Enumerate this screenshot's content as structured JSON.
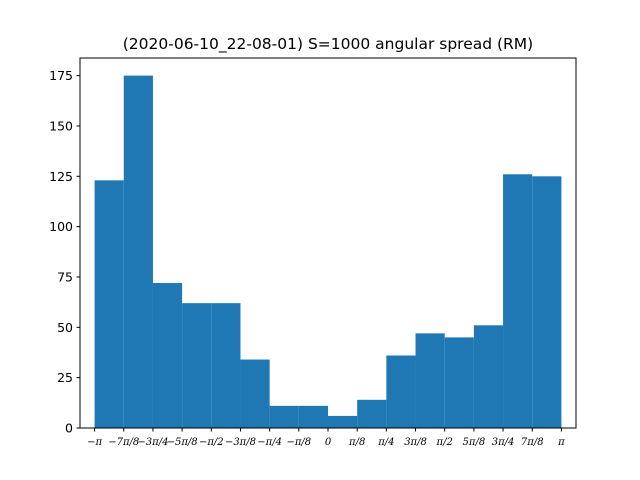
{
  "chart_data": {
    "type": "bar",
    "title": "(2020-06-10_22-08-01) S=1000 angular spread (RM)",
    "xlabel": "",
    "ylabel": "",
    "xlim": [
      -3.3379,
      3.3379
    ],
    "ylim": [
      0,
      183.75
    ],
    "color": "#1f77b4",
    "grid": false,
    "bin_edges": [
      -3.14159,
      -2.74889,
      -2.35619,
      -1.9635,
      -1.5708,
      -1.1781,
      -0.7854,
      -0.3927,
      0.0,
      0.3927,
      0.7854,
      1.1781,
      1.5708,
      1.9635,
      2.35619,
      2.74889,
      3.14159
    ],
    "values": [
      123,
      175,
      72,
      62,
      62,
      34,
      11,
      11,
      6,
      14,
      36,
      47,
      45,
      51,
      126,
      125
    ],
    "yticks": [
      0,
      25,
      50,
      75,
      100,
      125,
      150,
      175
    ],
    "ytick_labels": [
      "0",
      "25",
      "50",
      "75",
      "100",
      "125",
      "150",
      "175"
    ],
    "xticks": [
      -3.14159,
      -2.74889,
      -2.35619,
      -1.9635,
      -1.5708,
      -1.1781,
      -0.7854,
      -0.3927,
      0.0,
      0.3927,
      0.7854,
      1.1781,
      1.5708,
      1.9635,
      2.35619,
      2.74889,
      3.14159
    ],
    "xtick_labels": [
      "−π",
      "−7π/8",
      "−3π/4",
      "−5π/8",
      "−π/2",
      "−3π/8",
      "−π/4",
      "−π/8",
      "0",
      "π/8",
      "π/4",
      "3π/8",
      "π/2",
      "5π/8",
      "3π/4",
      "7π/8",
      "π"
    ]
  }
}
